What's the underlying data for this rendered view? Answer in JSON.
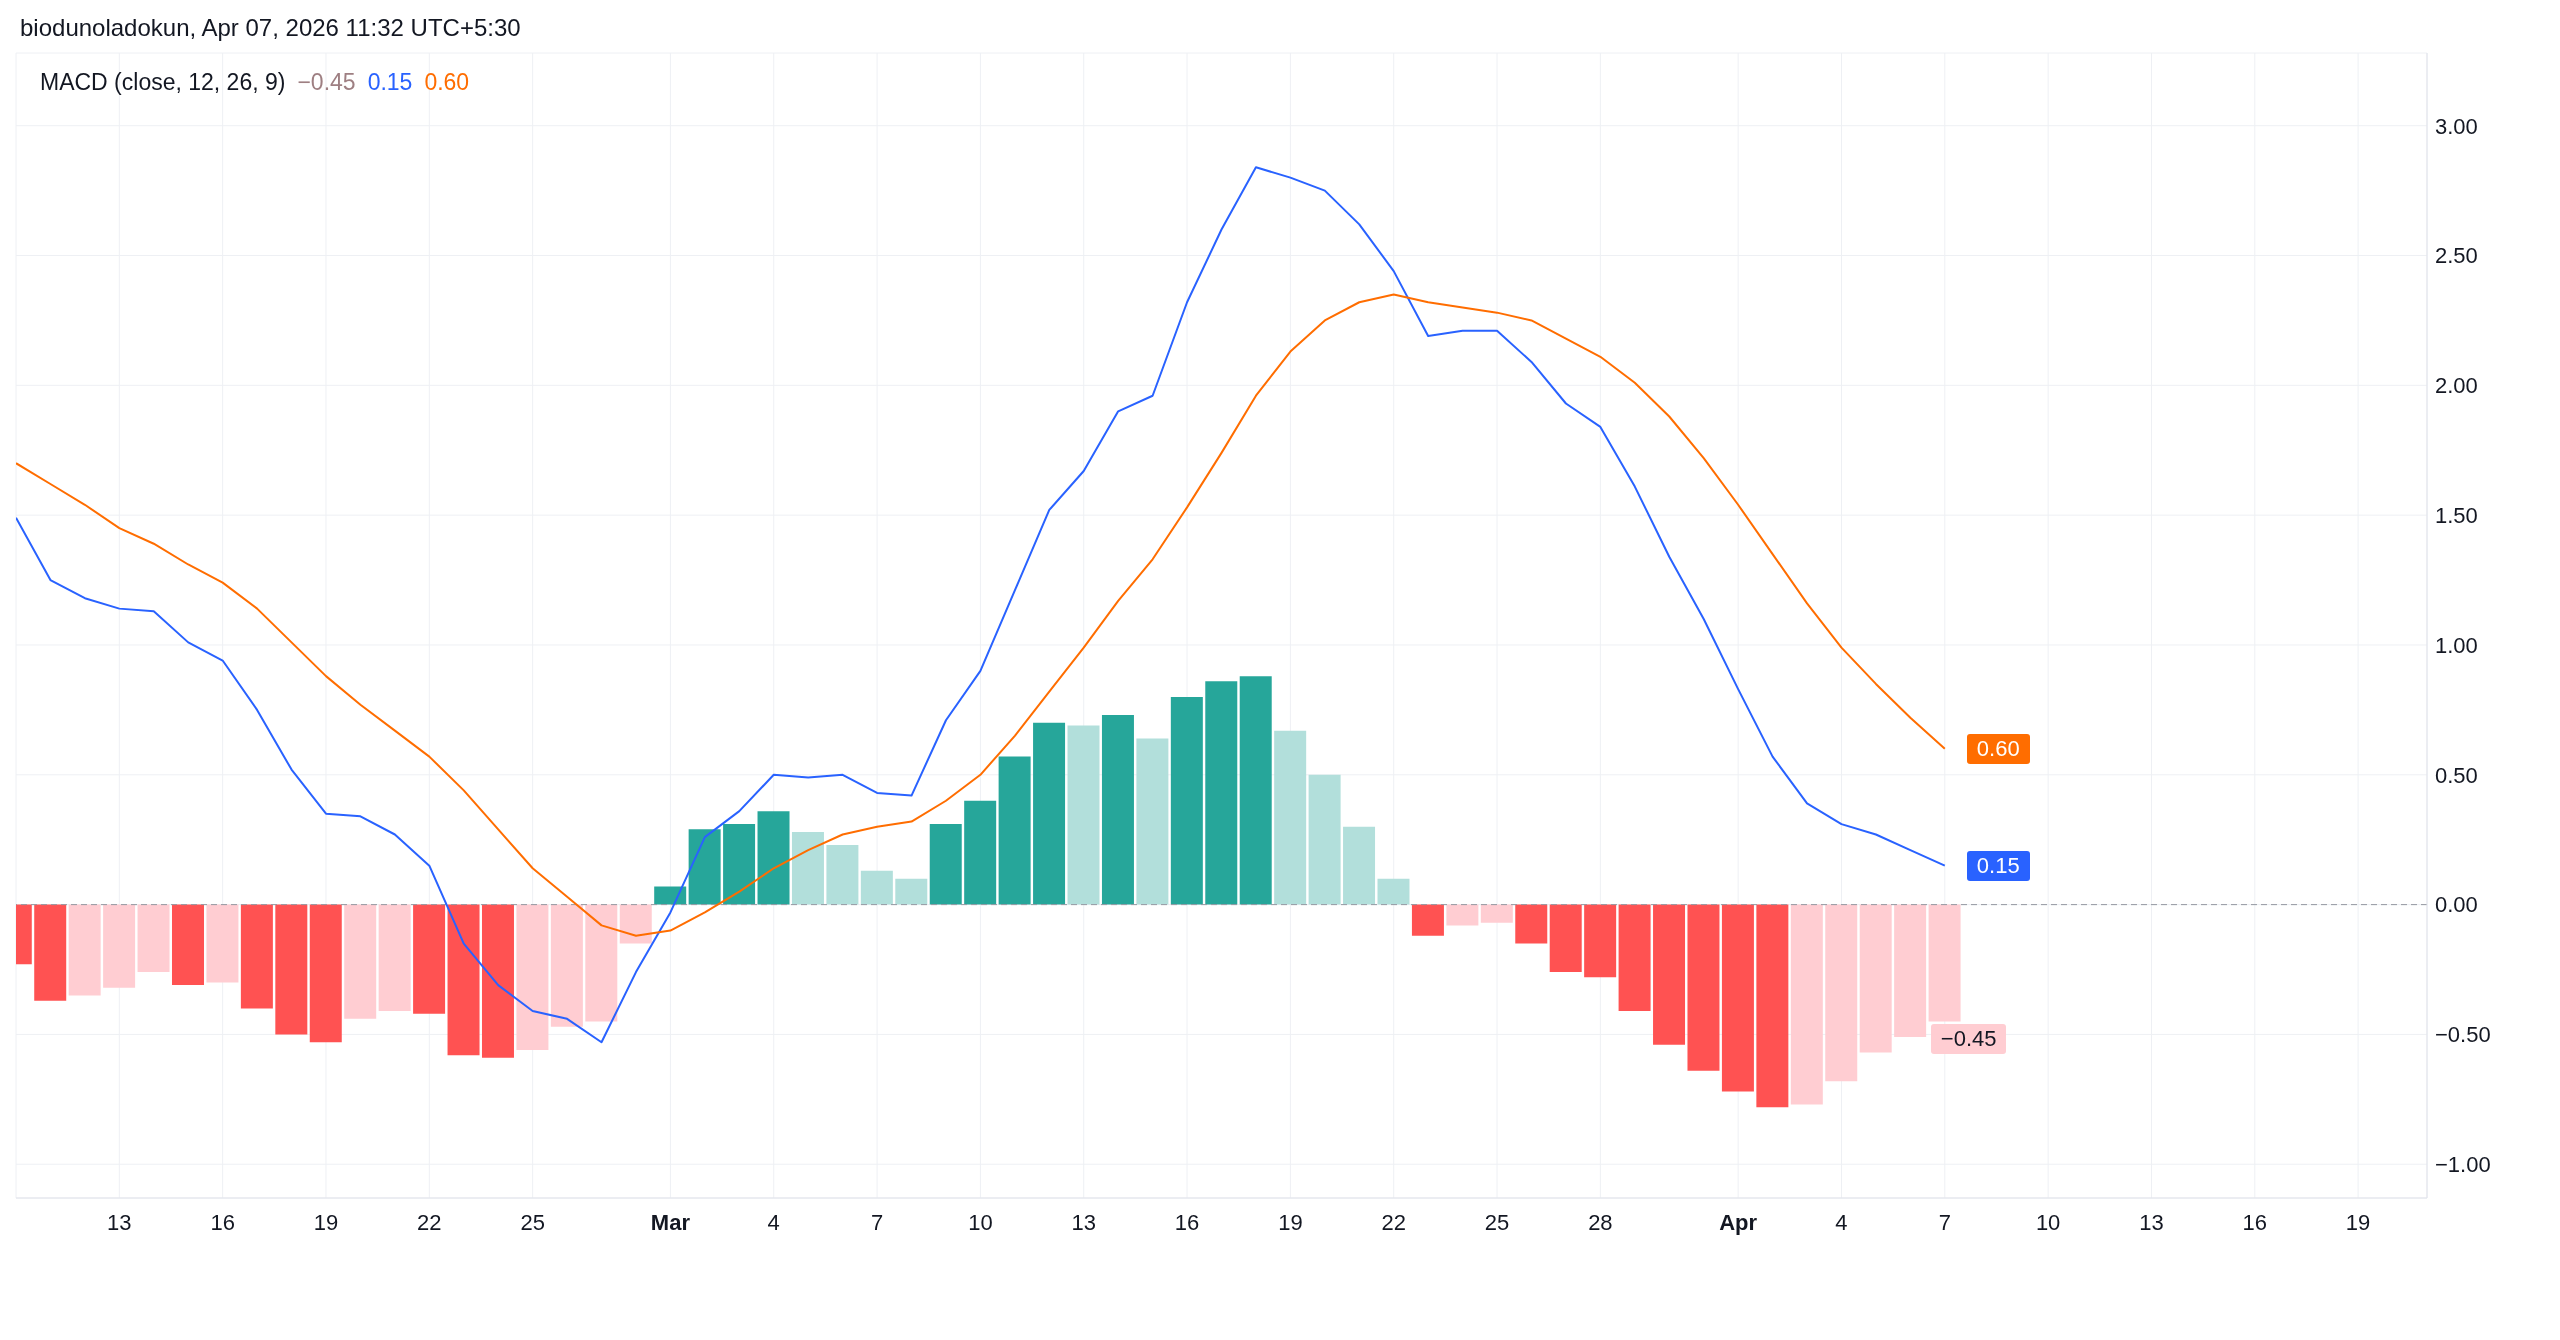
{
  "chart_data": {
    "type": "bar",
    "title": "MACD (close, 12, 26, 9)",
    "annotations": [
      "biodunoladokun, Apr 07, 2026 11:32 UTC+5:30"
    ],
    "x": [
      "2026-02-10",
      "2026-02-11",
      "2026-02-12",
      "2026-02-13",
      "2026-02-14",
      "2026-02-15",
      "2026-02-16",
      "2026-02-17",
      "2026-02-18",
      "2026-02-19",
      "2026-02-20",
      "2026-02-21",
      "2026-02-22",
      "2026-02-23",
      "2026-02-24",
      "2026-02-25",
      "2026-02-26",
      "2026-02-27",
      "2026-02-28",
      "2026-03-01",
      "2026-03-02",
      "2026-03-03",
      "2026-03-04",
      "2026-03-05",
      "2026-03-06",
      "2026-03-07",
      "2026-03-08",
      "2026-03-09",
      "2026-03-10",
      "2026-03-11",
      "2026-03-12",
      "2026-03-13",
      "2026-03-14",
      "2026-03-15",
      "2026-03-16",
      "2026-03-17",
      "2026-03-18",
      "2026-03-19",
      "2026-03-20",
      "2026-03-21",
      "2026-03-22",
      "2026-03-23",
      "2026-03-24",
      "2026-03-25",
      "2026-03-26",
      "2026-03-27",
      "2026-03-28",
      "2026-03-29",
      "2026-03-30",
      "2026-03-31",
      "2026-04-01",
      "2026-04-02",
      "2026-04-03",
      "2026-04-04",
      "2026-04-05",
      "2026-04-06",
      "2026-04-07"
    ],
    "series": [
      {
        "values": [
          -0.23,
          -0.37,
          -0.35,
          -0.32,
          -0.26,
          -0.31,
          -0.3,
          -0.4,
          -0.5,
          -0.53,
          -0.44,
          -0.41,
          -0.42,
          -0.58,
          -0.59,
          -0.56,
          -0.47,
          -0.45,
          -0.15,
          0.07,
          0.29,
          0.31,
          0.36,
          0.28,
          0.23,
          0.13,
          0.1,
          0.31,
          0.4,
          0.57,
          0.7,
          0.69,
          0.73,
          0.64,
          0.8,
          0.86,
          0.88,
          0.67,
          0.5,
          0.3,
          0.1,
          -0.12,
          -0.08,
          -0.07,
          -0.15,
          -0.26,
          -0.28,
          -0.41,
          -0.54,
          -0.64,
          -0.72,
          -0.78,
          -0.77,
          -0.68,
          -0.57,
          -0.51,
          -0.45
        ],
        "colors": [
          "#ff5252",
          "#ff5252",
          "#ffcdd2",
          "#ffcdd2",
          "#ffcdd2",
          "#ff5252",
          "#ffcdd2",
          "#ff5252",
          "#ff5252",
          "#ff5252",
          "#ffcdd2",
          "#ffcdd2",
          "#ff5252",
          "#ff5252",
          "#ff5252",
          "#ffcdd2",
          "#ffcdd2",
          "#ffcdd2",
          "#ffcdd2",
          "#26a69a",
          "#26a69a",
          "#26a69a",
          "#26a69a",
          "#b2dfdb",
          "#b2dfdb",
          "#b2dfdb",
          "#b2dfdb",
          "#26a69a",
          "#26a69a",
          "#26a69a",
          "#26a69a",
          "#b2dfdb",
          "#26a69a",
          "#b2dfdb",
          "#26a69a",
          "#26a69a",
          "#26a69a",
          "#b2dfdb",
          "#b2dfdb",
          "#b2dfdb",
          "#b2dfdb",
          "#ff5252",
          "#ffcdd2",
          "#ffcdd2",
          "#ff5252",
          "#ff5252",
          "#ff5252",
          "#ff5252",
          "#ff5252",
          "#ff5252",
          "#ff5252",
          "#ff5252",
          "#ffcdd2",
          "#ffcdd2",
          "#ffcdd2",
          "#ffcdd2",
          "#ffcdd2"
        ],
        "value_labels": [
          null,
          null,
          null,
          null,
          null,
          null,
          null,
          null,
          null,
          null,
          null,
          null,
          null,
          null,
          null,
          null,
          null,
          null,
          null,
          null,
          null,
          null,
          null,
          null,
          null,
          null,
          null,
          null,
          null,
          null,
          null,
          null,
          null,
          null,
          null,
          null,
          null,
          null,
          null,
          null,
          null,
          null,
          null,
          null,
          null,
          null,
          null,
          null,
          null,
          null,
          null,
          null,
          null,
          null,
          null,
          null,
          "−0.45"
        ]
      },
      {
        "type": "line",
        "color": "#2962ff",
        "values": [
          1.49,
          1.25,
          1.18,
          1.14,
          1.13,
          1.01,
          0.94,
          0.75,
          0.52,
          0.35,
          0.34,
          0.27,
          0.15,
          -0.15,
          -0.31,
          -0.41,
          -0.44,
          -0.53,
          -0.26,
          -0.03,
          0.26,
          0.36,
          0.5,
          0.49,
          0.5,
          0.43,
          0.42,
          0.71,
          0.9,
          1.21,
          1.52,
          1.67,
          1.9,
          1.96,
          2.32,
          2.6,
          2.84,
          2.8,
          2.75,
          2.62,
          2.44,
          2.19,
          2.21,
          2.21,
          2.09,
          1.93,
          1.84,
          1.61,
          1.34,
          1.1,
          0.83,
          0.57,
          0.39,
          0.31,
          0.27,
          0.21,
          0.15
        ],
        "value_labels": [
          null,
          null,
          null,
          null,
          null,
          null,
          null,
          null,
          null,
          null,
          null,
          null,
          null,
          null,
          null,
          null,
          null,
          null,
          null,
          null,
          null,
          null,
          null,
          null,
          null,
          null,
          null,
          null,
          null,
          null,
          null,
          null,
          null,
          null,
          null,
          null,
          null,
          null,
          null,
          null,
          null,
          null,
          null,
          null,
          null,
          null,
          null,
          null,
          null,
          null,
          null,
          null,
          null,
          null,
          null,
          null,
          "0.15"
        ]
      },
      {
        "type": "line",
        "color": "#ff6d00",
        "values": [
          1.7,
          1.62,
          1.54,
          1.45,
          1.39,
          1.31,
          1.24,
          1.14,
          1.01,
          0.88,
          0.77,
          0.67,
          0.57,
          0.44,
          0.29,
          0.14,
          0.03,
          -0.08,
          -0.12,
          -0.1,
          -0.03,
          0.05,
          0.14,
          0.21,
          0.27,
          0.3,
          0.32,
          0.4,
          0.5,
          0.65,
          0.82,
          0.99,
          1.17,
          1.33,
          1.53,
          1.74,
          1.96,
          2.13,
          2.25,
          2.32,
          2.35,
          2.32,
          2.3,
          2.28,
          2.25,
          2.18,
          2.11,
          2.01,
          1.88,
          1.72,
          1.54,
          1.35,
          1.16,
          0.99,
          0.85,
          0.72,
          0.6
        ],
        "value_labels": [
          null,
          null,
          null,
          null,
          null,
          null,
          null,
          null,
          null,
          null,
          null,
          null,
          null,
          null,
          null,
          null,
          null,
          null,
          null,
          null,
          null,
          null,
          null,
          null,
          null,
          null,
          null,
          null,
          null,
          null,
          null,
          null,
          null,
          null,
          null,
          null,
          null,
          null,
          null,
          null,
          null,
          null,
          null,
          null,
          null,
          null,
          null,
          null,
          null,
          null,
          null,
          null,
          null,
          null,
          null,
          null,
          "0.60"
        ]
      }
    ],
    "xlim": [
      "2026-02-10",
      "2026-04-21"
    ],
    "xticks": [
      {
        "value": "2026-02-13",
        "label": "13"
      },
      {
        "value": "2026-02-16",
        "label": "16"
      },
      {
        "value": "2026-02-19",
        "label": "19"
      },
      {
        "value": "2026-02-22",
        "label": "22"
      },
      {
        "value": "2026-02-25",
        "label": "25"
      },
      {
        "value": "2026-03-01",
        "label": "Mar"
      },
      {
        "value": "2026-03-04",
        "label": "4"
      },
      {
        "value": "2026-03-07",
        "label": "7"
      },
      {
        "value": "2026-03-10",
        "label": "10"
      },
      {
        "value": "2026-03-13",
        "label": "13"
      },
      {
        "value": "2026-03-16",
        "label": "16"
      },
      {
        "value": "2026-03-19",
        "label": "19"
      },
      {
        "value": "2026-03-22",
        "label": "22"
      },
      {
        "value": "2026-03-25",
        "label": "25"
      },
      {
        "value": "2026-03-28",
        "label": "28"
      },
      {
        "value": "2026-04-01",
        "label": "Apr"
      },
      {
        "value": "2026-04-04",
        "label": "4"
      },
      {
        "value": "2026-04-07",
        "label": "7"
      },
      {
        "value": "2026-04-10",
        "label": "10"
      },
      {
        "value": "2026-04-13",
        "label": "13"
      },
      {
        "value": "2026-04-16",
        "label": "16"
      },
      {
        "value": "2026-04-19",
        "label": "19"
      }
    ],
    "ylim": [
      -1.13,
      3.28
    ],
    "yticks": [
      {
        "value": -1,
        "label": "−1.00"
      },
      {
        "value": -0.5,
        "label": "−0.50"
      },
      {
        "value": 0,
        "label": "0.00"
      },
      {
        "value": 0.5,
        "label": "0.50"
      },
      {
        "value": 1,
        "label": "1.00"
      },
      {
        "value": 1.5,
        "label": "1.50"
      },
      {
        "value": 2,
        "label": "2.00"
      },
      {
        "value": 2.5,
        "label": "2.50"
      },
      {
        "value": 3,
        "label": "3.00"
      }
    ],
    "ref_lines": [
      {
        "axis": "y",
        "value": 0,
        "color": "#9598a1",
        "line_style": "dashed"
      }
    ],
    "grid": true,
    "marker": "none",
    "line_style": "solid"
  }
}
